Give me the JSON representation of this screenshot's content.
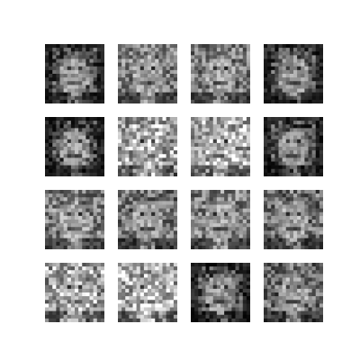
{
  "figure": {
    "background": "#ffffff",
    "grid": {
      "rows": 4,
      "columns": 4
    },
    "tiles": [
      {
        "row": 1,
        "col": 1,
        "tone": "dark",
        "subject": "face",
        "brightness": 0.32,
        "seed": 11
      },
      {
        "row": 1,
        "col": 2,
        "tone": "mixed",
        "subject": "face",
        "brightness": 0.52,
        "seed": 23
      },
      {
        "row": 1,
        "col": 3,
        "tone": "mixed",
        "subject": "face",
        "brightness": 0.48,
        "seed": 37
      },
      {
        "row": 1,
        "col": 4,
        "tone": "dark",
        "subject": "face",
        "brightness": 0.3,
        "seed": 41
      },
      {
        "row": 2,
        "col": 1,
        "tone": "dark",
        "subject": "face",
        "brightness": 0.28,
        "seed": 53
      },
      {
        "row": 2,
        "col": 2,
        "tone": "light",
        "subject": "face",
        "brightness": 0.58,
        "seed": 67
      },
      {
        "row": 2,
        "col": 3,
        "tone": "light",
        "subject": "face",
        "brightness": 0.6,
        "seed": 71
      },
      {
        "row": 2,
        "col": 4,
        "tone": "dark",
        "subject": "face",
        "brightness": 0.3,
        "seed": 83
      },
      {
        "row": 3,
        "col": 1,
        "tone": "mixed",
        "subject": "face",
        "brightness": 0.5,
        "seed": 97
      },
      {
        "row": 3,
        "col": 2,
        "tone": "mixed",
        "subject": "face",
        "brightness": 0.45,
        "seed": 101
      },
      {
        "row": 3,
        "col": 3,
        "tone": "mixed",
        "subject": "face",
        "brightness": 0.5,
        "seed": 113
      },
      {
        "row": 3,
        "col": 4,
        "tone": "mixed",
        "subject": "face",
        "brightness": 0.44,
        "seed": 127
      },
      {
        "row": 4,
        "col": 1,
        "tone": "light",
        "subject": "face",
        "brightness": 0.56,
        "seed": 131
      },
      {
        "row": 4,
        "col": 2,
        "tone": "light",
        "subject": "face",
        "brightness": 0.62,
        "seed": 149
      },
      {
        "row": 4,
        "col": 3,
        "tone": "dark",
        "subject": "face",
        "brightness": 0.3,
        "seed": 157
      },
      {
        "row": 4,
        "col": 4,
        "tone": "mixed",
        "subject": "face",
        "brightness": 0.42,
        "seed": 163
      }
    ]
  }
}
